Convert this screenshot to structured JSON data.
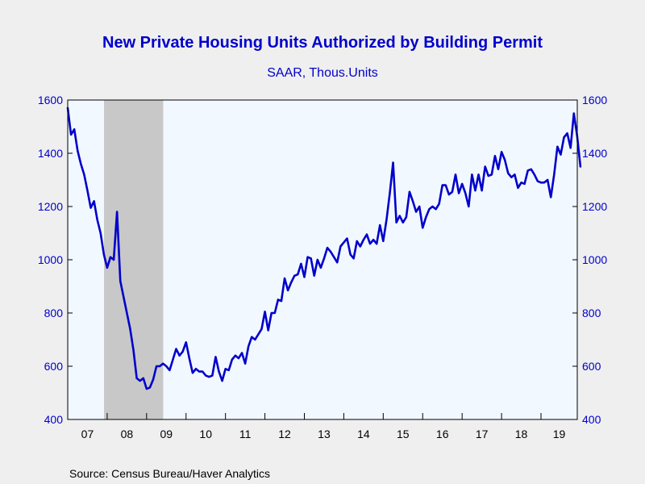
{
  "chart_data": {
    "type": "line",
    "title": "New Private Housing Units Authorized by Building Permit",
    "subtitle": "SAAR, Thous.Units",
    "source": "Source:  Census Bureau/Haver Analytics",
    "ylim": [
      400,
      1600
    ],
    "xlim": [
      2007.0,
      2019.92
    ],
    "yticks": [
      400,
      600,
      800,
      1000,
      1200,
      1400,
      1600
    ],
    "ytick_labels": [
      "400",
      "600",
      "800",
      "1000",
      "1200",
      "1400",
      "1600"
    ],
    "xtick_labels": [
      "07",
      "08",
      "09",
      "10",
      "11",
      "12",
      "13",
      "14",
      "15",
      "16",
      "17",
      "18",
      "19"
    ],
    "grid": false,
    "recession_shading": {
      "start": 2007.92,
      "end": 2009.42
    },
    "series": [
      {
        "color": "#0000cc",
        "x_start": 2007.0,
        "x_step": 0.083333,
        "values": [
          1570,
          1470,
          1490,
          1410,
          1360,
          1320,
          1260,
          1195,
          1220,
          1150,
          1100,
          1020,
          970,
          1010,
          1000,
          1180,
          920,
          860,
          800,
          740,
          660,
          555,
          545,
          555,
          515,
          520,
          550,
          600,
          600,
          610,
          600,
          585,
          625,
          665,
          640,
          655,
          690,
          630,
          575,
          590,
          580,
          580,
          565,
          560,
          565,
          635,
          580,
          545,
          590,
          585,
          625,
          640,
          630,
          650,
          610,
          675,
          710,
          700,
          720,
          740,
          805,
          735,
          800,
          800,
          850,
          845,
          930,
          885,
          915,
          940,
          945,
          985,
          935,
          1010,
          1005,
          940,
          1000,
          970,
          1005,
          1045,
          1030,
          1010,
          990,
          1050,
          1065,
          1080,
          1020,
          1005,
          1070,
          1050,
          1075,
          1095,
          1060,
          1075,
          1060,
          1130,
          1070,
          1150,
          1250,
          1365,
          1140,
          1165,
          1140,
          1160,
          1255,
          1220,
          1180,
          1200,
          1120,
          1160,
          1190,
          1200,
          1190,
          1210,
          1280,
          1280,
          1245,
          1255,
          1320,
          1250,
          1285,
          1250,
          1200,
          1320,
          1260,
          1320,
          1260,
          1350,
          1315,
          1320,
          1390,
          1340,
          1405,
          1375,
          1325,
          1310,
          1320,
          1270,
          1290,
          1285,
          1335,
          1340,
          1320,
          1295,
          1290,
          1290,
          1300,
          1235,
          1320,
          1425,
          1395,
          1460,
          1475,
          1420,
          1550,
          1465,
          1350
        ]
      }
    ]
  }
}
